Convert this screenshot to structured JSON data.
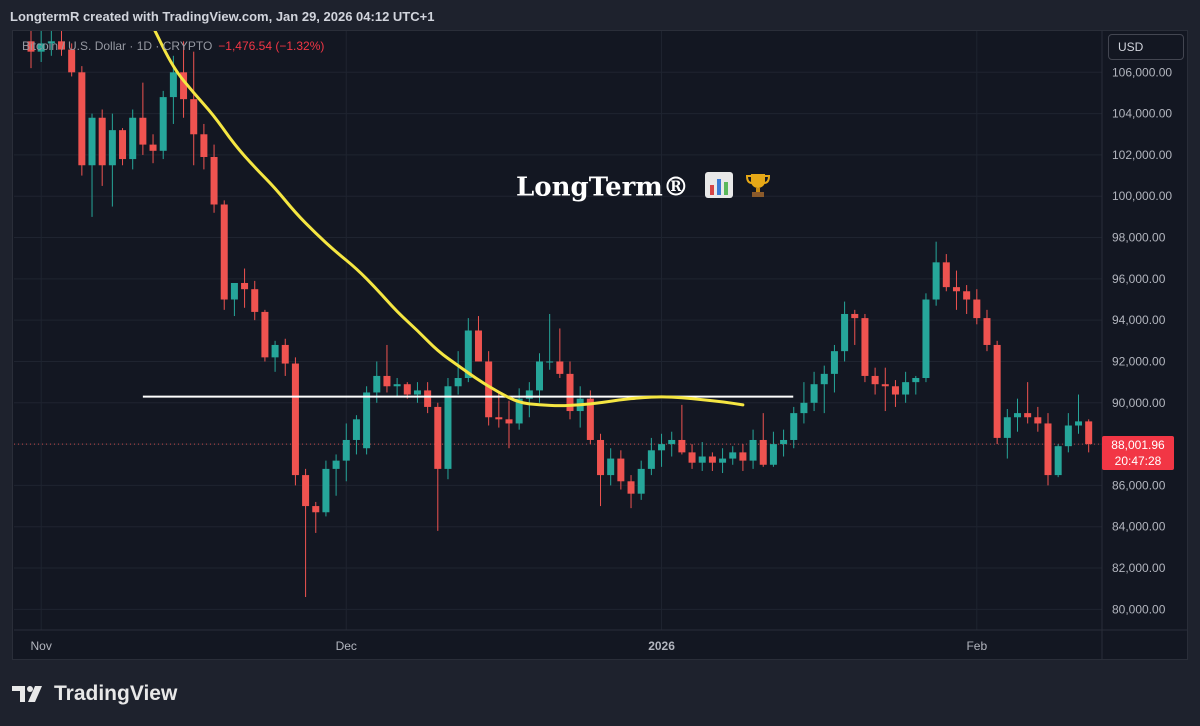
{
  "header": {
    "caption": "LongtermR created with TradingView.com, Jan 29, 2026 04:12 UTC+1"
  },
  "legend": {
    "symbol": "Bitcoin / U.S. Dollar · 1D · CRYPTO",
    "change": "−1,476.54 (−1.32%)"
  },
  "currency_button": {
    "label": "USD"
  },
  "watermark": {
    "text": "LongTerm®",
    "icons": [
      "bar-chart-emoji-icon",
      "trophy-emoji-icon"
    ]
  },
  "last_price": {
    "value": "88,001.96",
    "countdown": "20:47:28"
  },
  "footer": {
    "brand": "TradingView",
    "logo_icon": "tradingview-logo-icon"
  },
  "colors": {
    "up": "#26a69a",
    "down": "#ef5350",
    "ma": "#f5e642",
    "level": "#ffffff",
    "background": "#131722",
    "text": "#b2b5be"
  },
  "chart_data": {
    "type": "candlestick",
    "title": "Bitcoin / U.S. Dollar · 1D · CRYPTO",
    "ylim": [
      79000,
      108000
    ],
    "y_ticks": [
      "106,000.00",
      "104,000.00",
      "102,000.00",
      "100,000.00",
      "98,000.00",
      "96,000.00",
      "94,000.00",
      "92,000.00",
      "90,000.00",
      "88,000.00",
      "86,000.00",
      "84,000.00",
      "82,000.00",
      "80,000.00"
    ],
    "y_tick_values": [
      106000,
      104000,
      102000,
      100000,
      98000,
      96000,
      94000,
      92000,
      90000,
      88000,
      86000,
      84000,
      82000,
      80000
    ],
    "x_labels": [
      {
        "label": "Nov",
        "index": 1
      },
      {
        "label": "Dec",
        "index": 31
      },
      {
        "label": "2026",
        "index": 62
      },
      {
        "label": "Feb",
        "index": 93
      }
    ],
    "start_date": "2025-10-31",
    "candles": [
      {
        "d": "Oct 30",
        "o": 107500,
        "h": 108500,
        "l": 106200,
        "c": 107000
      },
      {
        "d": "Oct 31",
        "o": 107000,
        "h": 108300,
        "l": 106500,
        "c": 107400
      },
      {
        "d": "Nov 01",
        "o": 107400,
        "h": 108200,
        "l": 106800,
        "c": 107500
      },
      {
        "d": "Nov 02",
        "o": 107500,
        "h": 108000,
        "l": 106800,
        "c": 107100
      },
      {
        "d": "Nov 03",
        "o": 107100,
        "h": 107400,
        "l": 105800,
        "c": 106000
      },
      {
        "d": "Nov 04",
        "o": 106000,
        "h": 106300,
        "l": 101000,
        "c": 101500
      },
      {
        "d": "Nov 05",
        "o": 101500,
        "h": 104000,
        "l": 99000,
        "c": 103800
      },
      {
        "d": "Nov 06",
        "o": 103800,
        "h": 104200,
        "l": 100500,
        "c": 101500
      },
      {
        "d": "Nov 07",
        "o": 101500,
        "h": 104000,
        "l": 99500,
        "c": 103200
      },
      {
        "d": "Nov 08",
        "o": 103200,
        "h": 103300,
        "l": 101500,
        "c": 101800
      },
      {
        "d": "Nov 09",
        "o": 101800,
        "h": 104200,
        "l": 101300,
        "c": 103800
      },
      {
        "d": "Nov 10",
        "o": 103800,
        "h": 105500,
        "l": 102000,
        "c": 102500
      },
      {
        "d": "Nov 11",
        "o": 102500,
        "h": 103000,
        "l": 101600,
        "c": 102200
      },
      {
        "d": "Nov 12",
        "o": 102200,
        "h": 105100,
        "l": 101800,
        "c": 104800
      },
      {
        "d": "Nov 13",
        "o": 104800,
        "h": 106800,
        "l": 103500,
        "c": 106000
      },
      {
        "d": "Nov 14",
        "o": 106000,
        "h": 107500,
        "l": 103800,
        "c": 104700
      },
      {
        "d": "Nov 15",
        "o": 104700,
        "h": 107000,
        "l": 101500,
        "c": 103000
      },
      {
        "d": "Nov 16",
        "o": 103000,
        "h": 103500,
        "l": 101300,
        "c": 101900
      },
      {
        "d": "Nov 17",
        "o": 101900,
        "h": 102500,
        "l": 99200,
        "c": 99600
      },
      {
        "d": "Nov 18",
        "o": 99600,
        "h": 99800,
        "l": 94500,
        "c": 95000
      },
      {
        "d": "Nov 19",
        "o": 95000,
        "h": 95800,
        "l": 94200,
        "c": 95800
      },
      {
        "d": "Nov 20",
        "o": 95800,
        "h": 96500,
        "l": 94600,
        "c": 95500
      },
      {
        "d": "Nov 21",
        "o": 95500,
        "h": 95900,
        "l": 94000,
        "c": 94400
      },
      {
        "d": "Nov 22",
        "o": 94400,
        "h": 94500,
        "l": 92000,
        "c": 92200
      },
      {
        "d": "Nov 23",
        "o": 92200,
        "h": 93000,
        "l": 91500,
        "c": 92800
      },
      {
        "d": "Nov 24",
        "o": 92800,
        "h": 93100,
        "l": 91300,
        "c": 91900
      },
      {
        "d": "Nov 25",
        "o": 91900,
        "h": 92200,
        "l": 86000,
        "c": 86500
      },
      {
        "d": "Nov 26",
        "o": 86500,
        "h": 86800,
        "l": 80600,
        "c": 85000
      },
      {
        "d": "Nov 27",
        "o": 85000,
        "h": 85200,
        "l": 83700,
        "c": 84700
      },
      {
        "d": "Nov 28",
        "o": 84700,
        "h": 87200,
        "l": 84500,
        "c": 86800
      },
      {
        "d": "Nov 29",
        "o": 86800,
        "h": 87500,
        "l": 85500,
        "c": 87200
      },
      {
        "d": "Nov 30",
        "o": 87200,
        "h": 89000,
        "l": 86200,
        "c": 88200
      },
      {
        "d": "Dec 01",
        "o": 88200,
        "h": 89400,
        "l": 87500,
        "c": 89200
      },
      {
        "d": "Dec 02",
        "o": 87800,
        "h": 90800,
        "l": 87500,
        "c": 90500
      },
      {
        "d": "Dec 03",
        "o": 90500,
        "h": 92000,
        "l": 90000,
        "c": 91300
      },
      {
        "d": "Dec 04",
        "o": 91300,
        "h": 92800,
        "l": 90500,
        "c": 90800
      },
      {
        "d": "Dec 05",
        "o": 90800,
        "h": 91200,
        "l": 90300,
        "c": 90900
      },
      {
        "d": "Dec 06",
        "o": 90900,
        "h": 91000,
        "l": 90200,
        "c": 90400
      },
      {
        "d": "Dec 07",
        "o": 90400,
        "h": 91000,
        "l": 90000,
        "c": 90600
      },
      {
        "d": "Dec 08",
        "o": 90600,
        "h": 91000,
        "l": 89500,
        "c": 89800
      },
      {
        "d": "Dec 09",
        "o": 89800,
        "h": 90000,
        "l": 83800,
        "c": 86800
      },
      {
        "d": "Dec 10",
        "o": 86800,
        "h": 91200,
        "l": 86300,
        "c": 90800
      },
      {
        "d": "Dec 11",
        "o": 90800,
        "h": 92500,
        "l": 90400,
        "c": 91200
      },
      {
        "d": "Dec 12",
        "o": 91200,
        "h": 94100,
        "l": 91000,
        "c": 93500
      },
      {
        "d": "Dec 13",
        "o": 93500,
        "h": 94200,
        "l": 92000,
        "c": 92000
      },
      {
        "d": "Dec 14",
        "o": 92000,
        "h": 92500,
        "l": 88900,
        "c": 89300
      },
      {
        "d": "Dec 15",
        "o": 89300,
        "h": 90500,
        "l": 88800,
        "c": 89200
      },
      {
        "d": "Dec 16",
        "o": 89200,
        "h": 90100,
        "l": 87800,
        "c": 89000
      },
      {
        "d": "Dec 17",
        "o": 89000,
        "h": 90700,
        "l": 88700,
        "c": 90200
      },
      {
        "d": "Dec 18",
        "o": 90200,
        "h": 91000,
        "l": 89300,
        "c": 90600
      },
      {
        "d": "Dec 19",
        "o": 90600,
        "h": 92400,
        "l": 90000,
        "c": 92000
      },
      {
        "d": "Dec 20",
        "o": 92000,
        "h": 94300,
        "l": 91600,
        "c": 92000
      },
      {
        "d": "Dec 21",
        "o": 92000,
        "h": 93600,
        "l": 91200,
        "c": 91400
      },
      {
        "d": "Dec 22",
        "o": 91400,
        "h": 92000,
        "l": 89200,
        "c": 89600
      },
      {
        "d": "Dec 23",
        "o": 89600,
        "h": 90800,
        "l": 88800,
        "c": 90200
      },
      {
        "d": "Dec 24",
        "o": 90200,
        "h": 90600,
        "l": 88000,
        "c": 88200
      },
      {
        "d": "Dec 25",
        "o": 88200,
        "h": 88500,
        "l": 85000,
        "c": 86500
      },
      {
        "d": "Dec 26",
        "o": 86500,
        "h": 87800,
        "l": 86000,
        "c": 87300
      },
      {
        "d": "Dec 27",
        "o": 87300,
        "h": 87700,
        "l": 85800,
        "c": 86200
      },
      {
        "d": "Dec 28",
        "o": 86200,
        "h": 86500,
        "l": 84900,
        "c": 85600
      },
      {
        "d": "Dec 29",
        "o": 85600,
        "h": 87200,
        "l": 85300,
        "c": 86800
      },
      {
        "d": "Dec 30",
        "o": 86800,
        "h": 88300,
        "l": 86500,
        "c": 87700
      },
      {
        "d": "Dec 31",
        "o": 87700,
        "h": 88500,
        "l": 86900,
        "c": 88000
      },
      {
        "d": "Jan 01",
        "o": 88000,
        "h": 88600,
        "l": 87400,
        "c": 88200
      },
      {
        "d": "Jan 02",
        "o": 88200,
        "h": 89900,
        "l": 87500,
        "c": 87600
      },
      {
        "d": "Jan 03",
        "o": 87600,
        "h": 88000,
        "l": 86800,
        "c": 87100
      },
      {
        "d": "Jan 04",
        "o": 87100,
        "h": 88100,
        "l": 86700,
        "c": 87400
      },
      {
        "d": "Jan 05",
        "o": 87400,
        "h": 87600,
        "l": 86700,
        "c": 87100
      },
      {
        "d": "Jan 06",
        "o": 87100,
        "h": 87800,
        "l": 86600,
        "c": 87300
      },
      {
        "d": "Jan 07",
        "o": 87300,
        "h": 87900,
        "l": 87000,
        "c": 87600
      },
      {
        "d": "Jan 08",
        "o": 87600,
        "h": 88000,
        "l": 86700,
        "c": 87200
      },
      {
        "d": "Jan 09",
        "o": 87200,
        "h": 88700,
        "l": 86800,
        "c": 88200
      },
      {
        "d": "Jan 10",
        "o": 88200,
        "h": 89500,
        "l": 86900,
        "c": 87000
      },
      {
        "d": "Jan 11",
        "o": 87000,
        "h": 88600,
        "l": 86900,
        "c": 88000
      },
      {
        "d": "Jan 12",
        "o": 88000,
        "h": 88700,
        "l": 87400,
        "c": 88200
      },
      {
        "d": "Jan 13",
        "o": 88200,
        "h": 89800,
        "l": 87800,
        "c": 89500
      },
      {
        "d": "Jan 14",
        "o": 89500,
        "h": 91000,
        "l": 89000,
        "c": 90000
      },
      {
        "d": "Jan 15",
        "o": 90000,
        "h": 91500,
        "l": 89600,
        "c": 90900
      },
      {
        "d": "Jan 16",
        "o": 90900,
        "h": 91800,
        "l": 89500,
        "c": 91400
      },
      {
        "d": "Jan 17",
        "o": 91400,
        "h": 92800,
        "l": 90500,
        "c": 92500
      },
      {
        "d": "Jan 18",
        "o": 92500,
        "h": 94900,
        "l": 92000,
        "c": 94300
      },
      {
        "d": "Jan 19",
        "o": 94300,
        "h": 94500,
        "l": 92800,
        "c": 94100
      },
      {
        "d": "Jan 20",
        "o": 94100,
        "h": 94300,
        "l": 91000,
        "c": 91300
      },
      {
        "d": "Jan 21",
        "o": 91300,
        "h": 91700,
        "l": 90400,
        "c": 90900
      },
      {
        "d": "Jan 22",
        "o": 90900,
        "h": 91700,
        "l": 89600,
        "c": 90800
      },
      {
        "d": "Jan 23",
        "o": 90800,
        "h": 91100,
        "l": 89800,
        "c": 90400
      },
      {
        "d": "Jan 24",
        "o": 90400,
        "h": 91500,
        "l": 90000,
        "c": 91000
      },
      {
        "d": "Jan 25",
        "o": 91000,
        "h": 91300,
        "l": 90400,
        "c": 91200
      },
      {
        "d": "Jan 26",
        "o": 91200,
        "h": 95300,
        "l": 91000,
        "c": 95000
      },
      {
        "d": "Jan 27",
        "o": 95000,
        "h": 97800,
        "l": 94700,
        "c": 96800
      },
      {
        "d": "Jan 28",
        "o": 96800,
        "h": 97200,
        "l": 95400,
        "c": 95600
      },
      {
        "d": "Jan 29",
        "o": 95600,
        "h": 96400,
        "l": 94500,
        "c": 95400
      },
      {
        "d": "Jan 30",
        "o": 95400,
        "h": 95700,
        "l": 94300,
        "c": 95000
      },
      {
        "d": "Jan 31",
        "o": 95000,
        "h": 95500,
        "l": 93800,
        "c": 94100
      },
      {
        "d": "Feb 01",
        "o": 94100,
        "h": 94500,
        "l": 92500,
        "c": 92800
      },
      {
        "d": "Feb 02",
        "o": 92800,
        "h": 93000,
        "l": 88000,
        "c": 88300
      },
      {
        "d": "Feb 03",
        "o": 88300,
        "h": 89700,
        "l": 87300,
        "c": 89300
      },
      {
        "d": "Feb 04",
        "o": 89300,
        "h": 90200,
        "l": 88600,
        "c": 89500
      },
      {
        "d": "Feb 05",
        "o": 89500,
        "h": 91000,
        "l": 89000,
        "c": 89300
      },
      {
        "d": "Feb 06",
        "o": 89300,
        "h": 89800,
        "l": 88600,
        "c": 89000
      },
      {
        "d": "Feb 07",
        "o": 89000,
        "h": 89500,
        "l": 86000,
        "c": 86500
      },
      {
        "d": "Feb 08",
        "o": 86500,
        "h": 88000,
        "l": 86400,
        "c": 87900
      },
      {
        "d": "Feb 09",
        "o": 87900,
        "h": 89500,
        "l": 87600,
        "c": 88900
      },
      {
        "d": "Feb 10",
        "o": 88900,
        "h": 90400,
        "l": 88500,
        "c": 89100
      },
      {
        "d": "Feb 11",
        "o": 89100,
        "h": 89200,
        "l": 87600,
        "c": 88000
      }
    ],
    "moving_average": {
      "points": [
        [
          12,
          108200
        ],
        [
          14,
          106200
        ],
        [
          16,
          105000
        ],
        [
          18,
          103900
        ],
        [
          20,
          102500
        ],
        [
          22,
          101400
        ],
        [
          24,
          100400
        ],
        [
          26,
          99200
        ],
        [
          28,
          98200
        ],
        [
          30,
          97300
        ],
        [
          32,
          96500
        ],
        [
          34,
          95500
        ],
        [
          36,
          94400
        ],
        [
          38,
          93500
        ],
        [
          40,
          92500
        ],
        [
          42,
          91800
        ],
        [
          44,
          91100
        ],
        [
          46,
          90500
        ],
        [
          48,
          90000
        ],
        [
          50,
          89900
        ],
        [
          52,
          89850
        ],
        [
          54,
          89900
        ],
        [
          56,
          90000
        ],
        [
          58,
          90150
        ],
        [
          60,
          90250
        ],
        [
          62,
          90300
        ],
        [
          64,
          90250
        ],
        [
          66,
          90150
        ],
        [
          68,
          90050
        ],
        [
          70,
          89900
        ]
      ]
    },
    "horizontal_level": {
      "value": 90300,
      "from_index": 11,
      "to_index": 72
    },
    "last_price_value": 88001.96
  }
}
